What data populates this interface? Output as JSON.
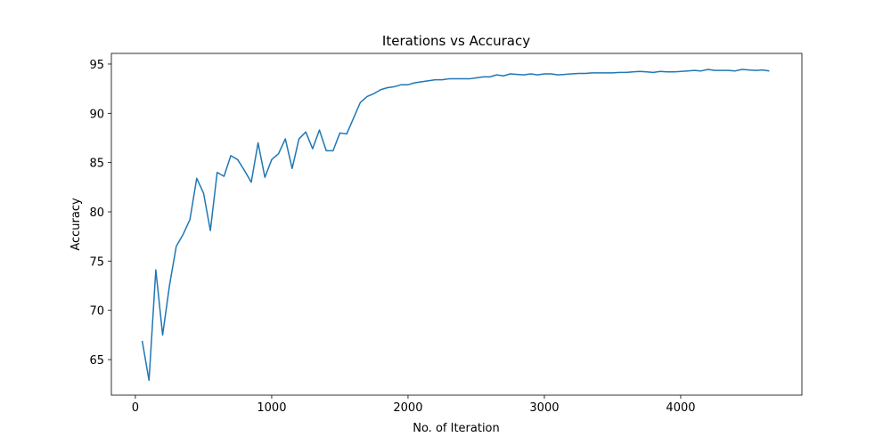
{
  "chart_data": {
    "type": "line",
    "title": "Iterations vs Accuracy",
    "xlabel": "No. of Iteration",
    "ylabel": "Accuracy",
    "x": [
      50,
      100,
      150,
      200,
      250,
      300,
      350,
      400,
      450,
      500,
      550,
      600,
      650,
      700,
      750,
      800,
      850,
      900,
      950,
      1000,
      1050,
      1100,
      1150,
      1200,
      1250,
      1300,
      1350,
      1400,
      1450,
      1500,
      1550,
      1600,
      1650,
      1700,
      1750,
      1800,
      1850,
      1900,
      1950,
      2000,
      2050,
      2100,
      2150,
      2200,
      2250,
      2300,
      2350,
      2400,
      2450,
      2500,
      2550,
      2600,
      2650,
      2700,
      2750,
      2800,
      2850,
      2900,
      2950,
      3000,
      3050,
      3100,
      3150,
      3200,
      3250,
      3300,
      3350,
      3400,
      3450,
      3500,
      3550,
      3600,
      3650,
      3700,
      3750,
      3800,
      3850,
      3900,
      3950,
      4000,
      4050,
      4100,
      4150,
      4200,
      4250,
      4300,
      4350,
      4400,
      4450,
      4500,
      4550,
      4600,
      4650
    ],
    "series": [
      {
        "name": "Accuracy",
        "color": "#1f77b4",
        "values": [
          66.9,
          62.9,
          74.1,
          67.5,
          72.5,
          76.5,
          77.7,
          79.2,
          83.4,
          81.9,
          78.1,
          84.0,
          83.6,
          85.7,
          85.3,
          84.2,
          83.0,
          87.0,
          83.5,
          85.3,
          85.9,
          87.4,
          84.4,
          87.4,
          88.1,
          86.4,
          88.3,
          86.2,
          86.2,
          88.0,
          87.9,
          89.5,
          91.1,
          91.7,
          92.0,
          92.4,
          92.6,
          92.7,
          92.9,
          92.9,
          93.1,
          93.2,
          93.3,
          93.4,
          93.4,
          93.5,
          93.5,
          93.5,
          93.5,
          93.6,
          93.7,
          93.7,
          93.9,
          93.8,
          94.0,
          93.95,
          93.9,
          94.0,
          93.9,
          94.0,
          94.0,
          93.9,
          93.95,
          94.0,
          94.05,
          94.05,
          94.1,
          94.1,
          94.1,
          94.1,
          94.15,
          94.15,
          94.2,
          94.25,
          94.2,
          94.15,
          94.25,
          94.2,
          94.2,
          94.25,
          94.3,
          94.35,
          94.3,
          94.45,
          94.35,
          94.35,
          94.35,
          94.3,
          94.45,
          94.4,
          94.35,
          94.4,
          94.3
        ]
      }
    ],
    "xlim": [
      -176,
      4889
    ],
    "ylim": [
      61.39,
      96.08
    ],
    "xticks": [
      0,
      1000,
      2000,
      3000,
      4000
    ],
    "yticks": [
      65,
      70,
      75,
      80,
      85,
      90,
      95
    ]
  }
}
